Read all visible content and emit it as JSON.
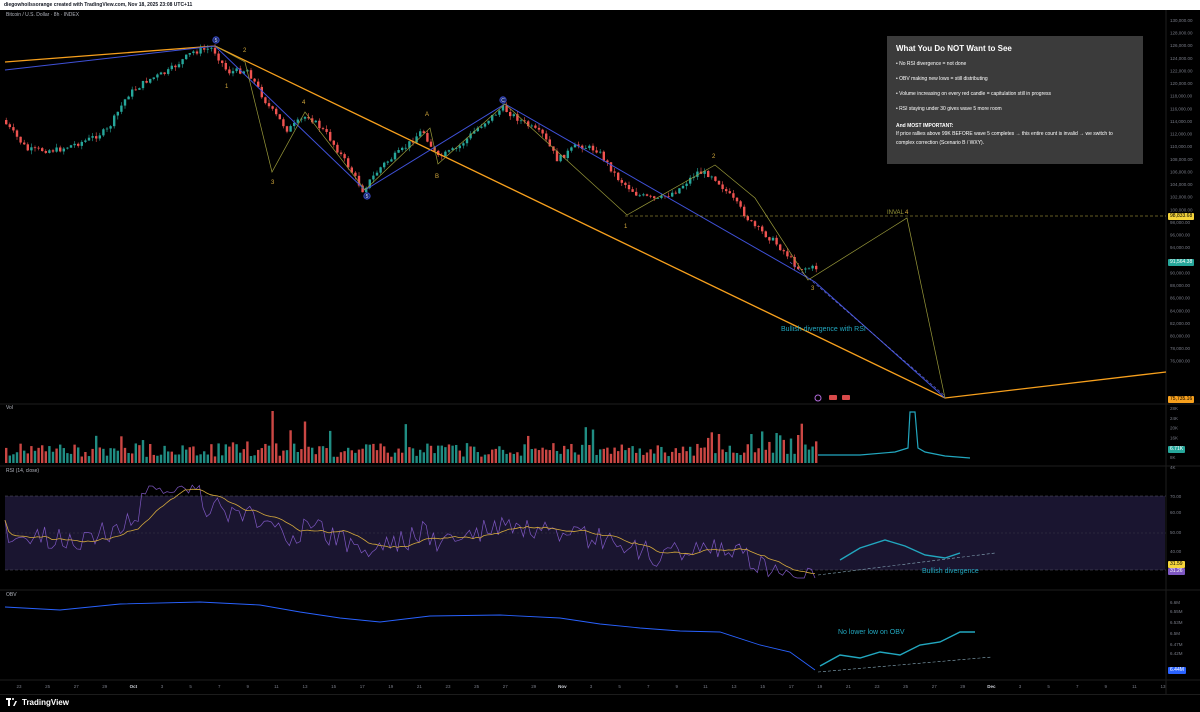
{
  "header": {
    "caption": "diegowhoilssorange created with TradingView.com, Nov 18, 2025 23:08 UTC+11"
  },
  "symbol": {
    "label": "Bitcoin / U.S. Dollar · 8h · INDEX"
  },
  "info_box": {
    "title": "What You Do NOT Want to See",
    "lines": [
      "• No RSI divergence = not done",
      "• OBV making new lows = still distributing",
      "• Volume increasing on every red candle = capitulation still in progress",
      "• RSI staying under 30 gives wave 5 more room"
    ],
    "important_label": "And MOST IMPORTANT:",
    "condition_1": "If price rallies above 99K BEFORE wave 5 completes → this entire count is invalid → we switch to",
    "condition_2": "complex correction (Scenario B / WXY)."
  },
  "price_axis": {
    "ticks": [
      "130,000.00",
      "128,000.00",
      "126,000.00",
      "124,000.00",
      "122,000.00",
      "120,000.00",
      "118,000.00",
      "116,000.00",
      "114,000.00",
      "112,000.00",
      "110,000.00",
      "108,000.00",
      "106,000.00",
      "104,000.00",
      "102,000.00",
      "100,000.00",
      "98,000.00",
      "96,000.00",
      "94,000.00",
      "92,000.00",
      "90,000.00",
      "88,000.00",
      "86,000.00",
      "84,000.00",
      "82,000.00",
      "80,000.00",
      "78,000.00",
      "76,000.00"
    ],
    "invalidation_tag": "98,833.68",
    "current_price_tag": "91,564.38",
    "target_tag": "75,735.16"
  },
  "volume_pane": {
    "label": "Vol",
    "ticks": [
      "28K",
      "24K",
      "20K",
      "16K",
      "12K",
      "8K",
      "4K"
    ],
    "current_tag": "6.71K"
  },
  "rsi_pane": {
    "label": "RSI (14, close)",
    "ticks": [
      "70.00",
      "60.00",
      "50.00",
      "40.00"
    ],
    "tag_1": "31.59",
    "tag_2": "31.26"
  },
  "obv_pane": {
    "label": "OBV",
    "ticks": [
      "6.6M",
      "6.55M",
      "6.53M",
      "6.5M",
      "6.47M",
      "6.42M"
    ],
    "current_tag": "6.44M"
  },
  "time_axis": {
    "ticks": [
      "23",
      "25",
      "27",
      "29",
      "Oct",
      "3",
      "5",
      "7",
      "9",
      "11",
      "13",
      "15",
      "17",
      "19",
      "21",
      "23",
      "25",
      "27",
      "29",
      "Nov",
      "3",
      "5",
      "7",
      "9",
      "11",
      "13",
      "15",
      "17",
      "19",
      "21",
      "23",
      "25",
      "27",
      "29",
      "Dec",
      "3",
      "5",
      "7",
      "9",
      "11",
      "13"
    ]
  },
  "wave_labels": {
    "w1a": "1",
    "w2a": "2",
    "w3a": "3",
    "w4a": "4",
    "w5a": "5",
    "wA": "A",
    "wB": "B",
    "wC": "C",
    "wtop": "5",
    "w1b": "1",
    "w2b": "2",
    "w3b": "3",
    "w4b": "4",
    "inval": "INVAL"
  },
  "annotations": {
    "price_div": "Bullish divergence with RSI",
    "rsi_div": "Bullish divergence",
    "obv_note": "No lower low on OBV"
  },
  "footer": {
    "brand": "TradingView"
  },
  "colors": {
    "up": "#26a69a",
    "down": "#ef5350",
    "fib": "#f7a01d",
    "blue": "#3f51d8",
    "olive": "#9a9a3a",
    "rsi": "#7e57c2",
    "rsi_ma": "#d4a93c",
    "obv": "#2962ff",
    "annot": "#22a7bf"
  }
}
